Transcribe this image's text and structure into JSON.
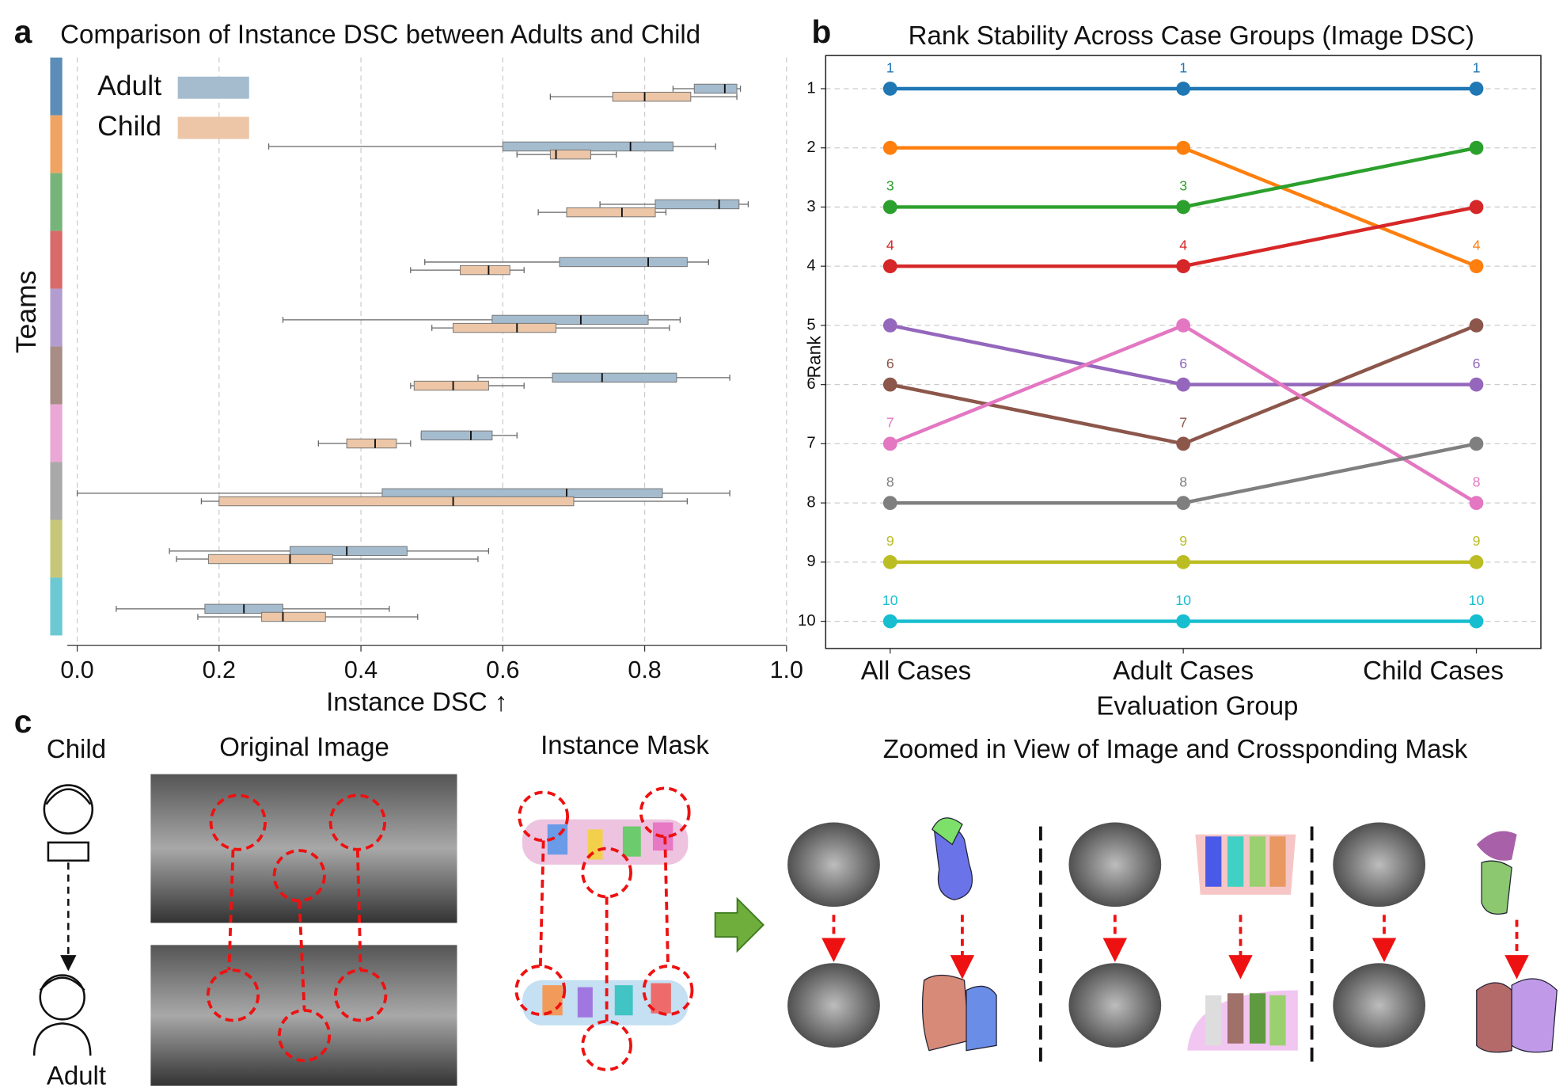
{
  "chart_data": [
    {
      "type": "box",
      "panel_label": "a",
      "title": "Comparison of Instance DSC between Adults and Child",
      "xlabel": "Instance DSC ↑",
      "ylabel": "Teams",
      "xlim": [
        -0.014,
        1.0
      ],
      "xticks": [
        {
          "value": 0,
          "label": "0.0"
        },
        0.2,
        0.4,
        0.6,
        0.8,
        {
          "value": 1,
          "label": "1.0"
        }
      ],
      "grid": true,
      "team_colors": [
        "#5b8db8",
        "#f0a464",
        "#77b47a",
        "#d86a6a",
        "#b39dd0",
        "#a88d86",
        "#e9a8d6",
        "#a9a9a9",
        "#c7c77a",
        "#6cc9d4"
      ],
      "series": [
        {
          "name": "Adult",
          "color": "#a5bccf",
          "boxes": [
            {
              "whislo": 0.84,
              "q1": 0.87,
              "med": 0.913,
              "q3": 0.93,
              "whishi": 0.935
            },
            {
              "whislo": 0.27,
              "q1": 0.6,
              "med": 0.78,
              "q3": 0.84,
              "whishi": 0.9
            },
            {
              "whislo": 0.737,
              "q1": 0.815,
              "med": 0.905,
              "q3": 0.933,
              "whishi": 0.946
            },
            {
              "whislo": 0.49,
              "q1": 0.68,
              "med": 0.805,
              "q3": 0.86,
              "whishi": 0.89
            },
            {
              "whislo": 0.29,
              "q1": 0.585,
              "med": 0.71,
              "q3": 0.805,
              "whishi": 0.85
            },
            {
              "whislo": 0.565,
              "q1": 0.67,
              "med": 0.74,
              "q3": 0.845,
              "whishi": 0.92
            },
            {
              "whislo": 0.485,
              "q1": 0.485,
              "med": 0.555,
              "q3": 0.585,
              "whishi": 0.62
            },
            {
              "whislo": 0.0,
              "q1": 0.43,
              "med": 0.69,
              "q3": 0.825,
              "whishi": 0.92
            },
            {
              "whislo": 0.13,
              "q1": 0.3,
              "med": 0.38,
              "q3": 0.465,
              "whishi": 0.58
            },
            {
              "whislo": 0.055,
              "q1": 0.18,
              "med": 0.235,
              "q3": 0.29,
              "whishi": 0.44
            }
          ]
        },
        {
          "name": "Child",
          "color": "#ecc6a6",
          "boxes": [
            {
              "whislo": 0.667,
              "q1": 0.755,
              "med": 0.8,
              "q3": 0.865,
              "whishi": 0.93
            },
            {
              "whislo": 0.62,
              "q1": 0.667,
              "med": 0.675,
              "q3": 0.724,
              "whishi": 0.76
            },
            {
              "whislo": 0.65,
              "q1": 0.69,
              "med": 0.768,
              "q3": 0.815,
              "whishi": 0.83
            },
            {
              "whislo": 0.47,
              "q1": 0.54,
              "med": 0.58,
              "q3": 0.61,
              "whishi": 0.63
            },
            {
              "whislo": 0.5,
              "q1": 0.53,
              "med": 0.62,
              "q3": 0.675,
              "whishi": 0.835
            },
            {
              "whislo": 0.47,
              "q1": 0.475,
              "med": 0.53,
              "q3": 0.58,
              "whishi": 0.63
            },
            {
              "whislo": 0.34,
              "q1": 0.38,
              "med": 0.42,
              "q3": 0.45,
              "whishi": 0.47
            },
            {
              "whislo": 0.175,
              "q1": 0.2,
              "med": 0.53,
              "q3": 0.7,
              "whishi": 0.86
            },
            {
              "whislo": 0.14,
              "q1": 0.185,
              "med": 0.3,
              "q3": 0.36,
              "whishi": 0.565
            },
            {
              "whislo": 0.17,
              "q1": 0.26,
              "med": 0.29,
              "q3": 0.35,
              "whishi": 0.48
            }
          ]
        }
      ]
    },
    {
      "type": "line",
      "panel_label": "b",
      "title": "Rank Stability Across Case Groups (Image DSC)",
      "xlabel": "Evaluation Group",
      "ylabel": "Rank",
      "categories": [
        "All Cases",
        "Adult Cases",
        "Child Cases"
      ],
      "ylim": [
        10.46,
        0.44
      ],
      "yticks": [
        1,
        2,
        3,
        4,
        5,
        6,
        7,
        8,
        9,
        10
      ],
      "grid": true,
      "series": [
        {
          "color": "#1f77b4",
          "values": [
            1,
            1,
            1
          ],
          "value_labels": [
            "1",
            "1",
            "1"
          ]
        },
        {
          "color": "#ff7f0e",
          "values": [
            2,
            2,
            4
          ],
          "value_labels": [
            null,
            null,
            "4"
          ]
        },
        {
          "color": "#2ca02c",
          "values": [
            3,
            3,
            2
          ],
          "value_labels": [
            "3",
            "3",
            null
          ]
        },
        {
          "color": "#d62728",
          "values": [
            4,
            4,
            3
          ],
          "value_labels": [
            "4",
            "4",
            null
          ]
        },
        {
          "color": "#9467bd",
          "values": [
            5,
            6,
            6
          ],
          "value_labels": [
            null,
            "6",
            "6"
          ]
        },
        {
          "color": "#8c564b",
          "values": [
            6,
            7,
            5
          ],
          "value_labels": [
            "6",
            "7",
            null
          ]
        },
        {
          "color": "#e377c2",
          "values": [
            7,
            5,
            8
          ],
          "value_labels": [
            "7",
            null,
            "8"
          ]
        },
        {
          "color": "#7f7f7f",
          "values": [
            8,
            8,
            7
          ],
          "value_labels": [
            "8",
            "8",
            null
          ]
        },
        {
          "color": "#bcbd22",
          "values": [
            9,
            9,
            9
          ],
          "value_labels": [
            "9",
            "9",
            "9"
          ]
        },
        {
          "color": "#17becf",
          "values": [
            10,
            10,
            10
          ],
          "value_labels": [
            "10",
            "10",
            "10"
          ]
        }
      ]
    }
  ],
  "panel_c": {
    "label": "c",
    "child": "Child",
    "adult": "Adult",
    "original_title": "Original Image",
    "mask_title": "Instance Mask",
    "zoom_title": "Zoomed in View of Image and Crossponding Mask"
  }
}
